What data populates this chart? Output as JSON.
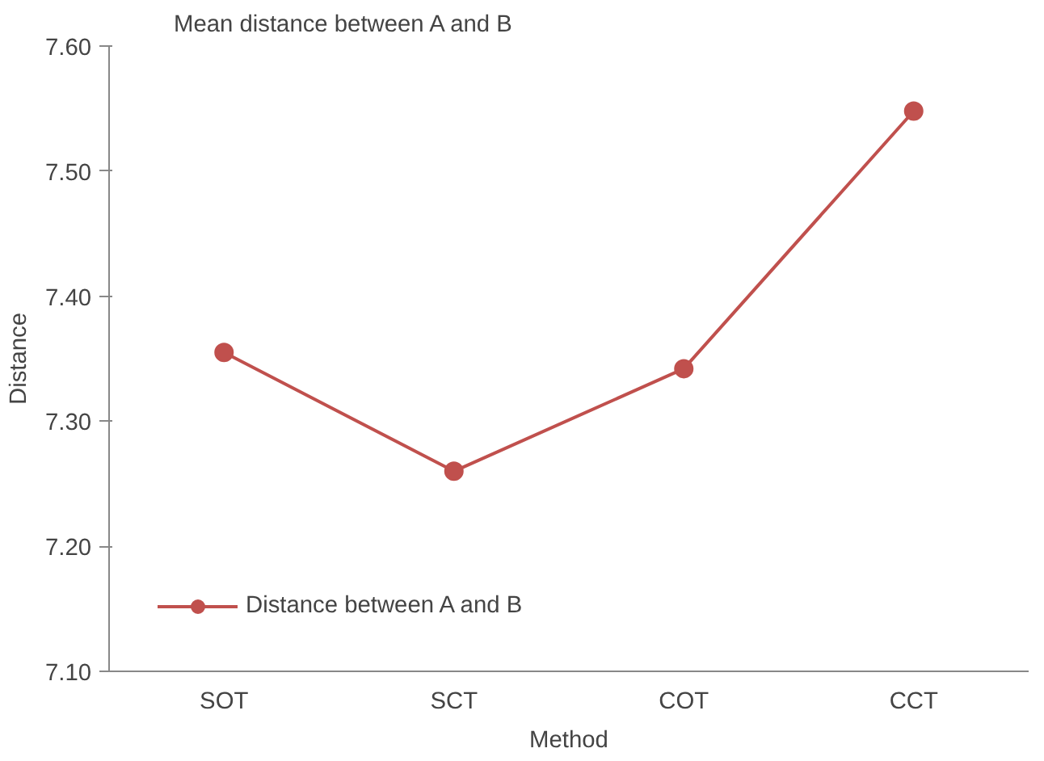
{
  "chart_data": {
    "type": "line",
    "title": "Mean distance between A and B",
    "xlabel": "Method",
    "ylabel": "Distance",
    "categories": [
      "SOT",
      "SCT",
      "COT",
      "CCT"
    ],
    "series": [
      {
        "name": "Distance between A and B",
        "color": "#c0504d",
        "values": [
          7.355,
          7.26,
          7.342,
          7.548
        ]
      }
    ],
    "ylim": [
      7.1,
      7.6
    ],
    "yticks": [
      {
        "value": 7.1,
        "label": "7.10"
      },
      {
        "value": 7.2,
        "label": "7.20"
      },
      {
        "value": 7.3,
        "label": "7.30"
      },
      {
        "value": 7.4,
        "label": "7.40"
      },
      {
        "value": 7.5,
        "label": "7.50"
      },
      {
        "value": 7.6,
        "label": "7.60"
      }
    ],
    "grid": false,
    "legend": "bottom left",
    "marker": "circle",
    "line_style": "solid"
  }
}
